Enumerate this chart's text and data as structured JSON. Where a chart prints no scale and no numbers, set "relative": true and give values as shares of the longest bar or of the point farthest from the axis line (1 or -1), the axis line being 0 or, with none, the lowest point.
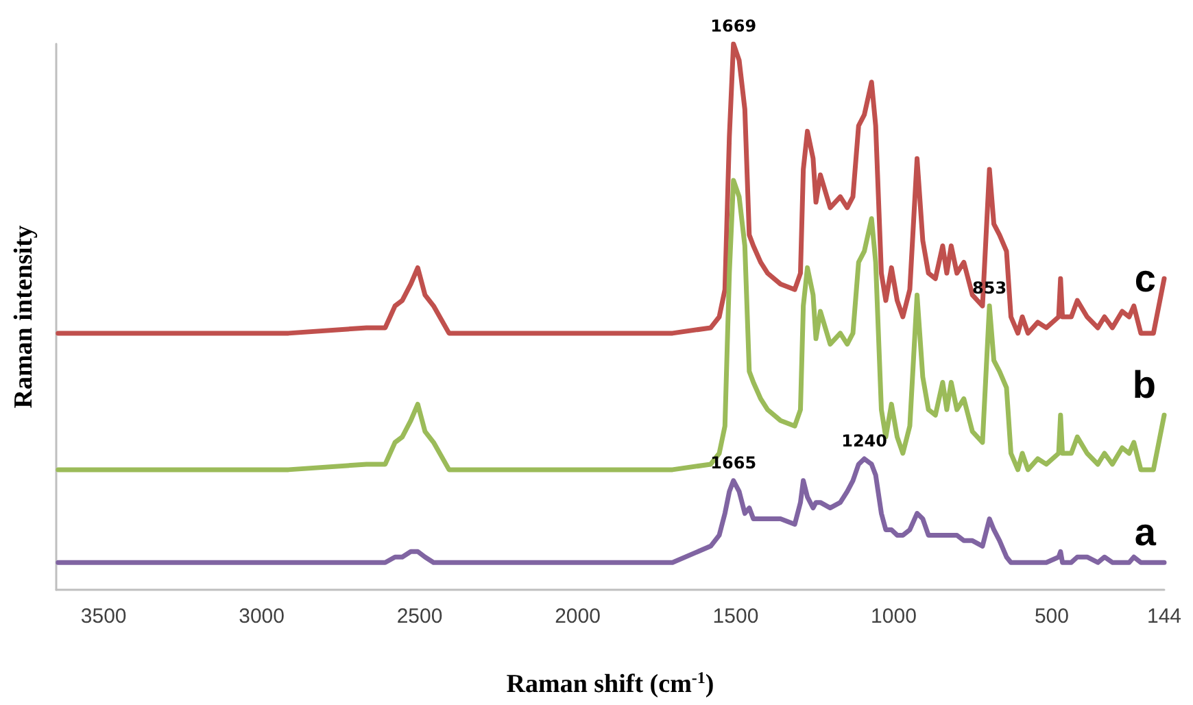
{
  "chart_data": {
    "type": "line",
    "relative": true,
    "xlabel": "Raman shift (cm$^{-1}$)",
    "ylabel": "Raman intensity",
    "x": [
      3644,
      3199,
      2915,
      2668,
      2609,
      2578,
      2555,
      2528,
      2506,
      2483,
      2456,
      2407,
      2015,
      1700,
      1579,
      1552,
      1534,
      1520,
      1507,
      1489,
      1471,
      1457,
      1444,
      1421,
      1399,
      1358,
      1313,
      1295,
      1286,
      1273,
      1255,
      1246,
      1232,
      1201,
      1169,
      1147,
      1129,
      1111,
      1093,
      1070,
      1057,
      1039,
      1025,
      1007,
      989,
      971,
      949,
      926,
      908,
      890,
      868,
      845,
      832,
      818,
      800,
      778,
      751,
      719,
      697,
      683,
      665,
      643,
      629,
      607,
      593,
      575,
      544,
      517,
      478,
      472,
      466,
      438,
      419,
      388,
      354,
      333,
      308,
      277,
      255,
      240,
      218,
      178,
      144
    ],
    "xlim": [
      3650,
      144
    ],
    "xticks": [
      3500,
      3000,
      2500,
      2000,
      1500,
      1000,
      500,
      144
    ],
    "series": [
      {
        "name": "c",
        "color": "#c0504d",
        "values": [
          0.47,
          0.47,
          0.47,
          0.48,
          0.48,
          0.52,
          0.53,
          0.56,
          0.59,
          0.54,
          0.52,
          0.47,
          0.47,
          0.47,
          0.48,
          0.5,
          0.55,
          0.83,
          1,
          0.97,
          0.88,
          0.65,
          0.63,
          0.6,
          0.58,
          0.56,
          0.55,
          0.58,
          0.77,
          0.84,
          0.79,
          0.71,
          0.76,
          0.7,
          0.72,
          0.7,
          0.72,
          0.85,
          0.87,
          0.93,
          0.85,
          0.58,
          0.53,
          0.59,
          0.53,
          0.5,
          0.55,
          0.79,
          0.64,
          0.58,
          0.57,
          0.63,
          0.58,
          0.63,
          0.58,
          0.6,
          0.54,
          0.52,
          0.77,
          0.67,
          0.65,
          0.62,
          0.5,
          0.47,
          0.5,
          0.47,
          0.49,
          0.48,
          0.5,
          0.57,
          0.5,
          0.5,
          0.53,
          0.5,
          0.48,
          0.5,
          0.48,
          0.51,
          0.5,
          0.52,
          0.47,
          0.47,
          0.57
        ]
      },
      {
        "name": "b",
        "color": "#9bbb59",
        "values": [
          0.22,
          0.22,
          0.22,
          0.23,
          0.23,
          0.27,
          0.28,
          0.31,
          0.34,
          0.29,
          0.27,
          0.22,
          0.22,
          0.22,
          0.23,
          0.25,
          0.3,
          0.58,
          0.75,
          0.72,
          0.63,
          0.4,
          0.38,
          0.35,
          0.33,
          0.31,
          0.3,
          0.33,
          0.52,
          0.59,
          0.54,
          0.46,
          0.51,
          0.45,
          0.47,
          0.45,
          0.47,
          0.6,
          0.62,
          0.68,
          0.6,
          0.33,
          0.28,
          0.34,
          0.28,
          0.25,
          0.3,
          0.54,
          0.39,
          0.33,
          0.32,
          0.38,
          0.33,
          0.38,
          0.33,
          0.35,
          0.29,
          0.27,
          0.52,
          0.42,
          0.4,
          0.37,
          0.25,
          0.22,
          0.25,
          0.22,
          0.24,
          0.23,
          0.25,
          0.32,
          0.25,
          0.25,
          0.28,
          0.25,
          0.23,
          0.25,
          0.23,
          0.26,
          0.25,
          0.27,
          0.22,
          0.22,
          0.32
        ]
      },
      {
        "name": "a",
        "color": "#8064a2",
        "values": [
          0.05,
          0.05,
          0.05,
          0.05,
          0.05,
          0.06,
          0.06,
          0.07,
          0.07,
          0.06,
          0.05,
          0.05,
          0.05,
          0.05,
          0.08,
          0.1,
          0.14,
          0.18,
          0.2,
          0.18,
          0.14,
          0.15,
          0.13,
          0.13,
          0.13,
          0.13,
          0.12,
          0.16,
          0.2,
          0.17,
          0.15,
          0.16,
          0.16,
          0.15,
          0.16,
          0.18,
          0.2,
          0.23,
          0.24,
          0.23,
          0.21,
          0.14,
          0.11,
          0.11,
          0.1,
          0.1,
          0.11,
          0.14,
          0.13,
          0.1,
          0.1,
          0.1,
          0.1,
          0.1,
          0.1,
          0.09,
          0.09,
          0.08,
          0.13,
          0.11,
          0.09,
          0.06,
          0.05,
          0.05,
          0.05,
          0.05,
          0.05,
          0.05,
          0.06,
          0.07,
          0.05,
          0.05,
          0.06,
          0.06,
          0.05,
          0.06,
          0.05,
          0.05,
          0.05,
          0.06,
          0.05,
          0.05,
          0.05
        ]
      }
    ],
    "annotations": [
      {
        "text": "1669",
        "x": 1507,
        "y": 1
      },
      {
        "text": "853",
        "x": 697,
        "y": 0.52
      },
      {
        "text": "1665",
        "x": 1507,
        "y": 0.2
      },
      {
        "text": "1240",
        "x": 1093,
        "y": 0.24
      }
    ]
  }
}
